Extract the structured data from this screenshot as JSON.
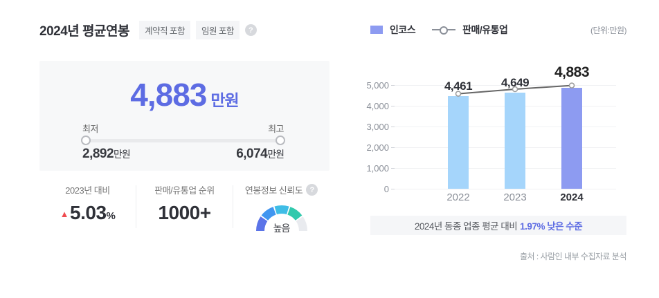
{
  "colors": {
    "accent": "#5d6ce3",
    "bar_blue": "#a5d5fb",
    "bar_highlight": "#8d9bf1",
    "trend_line": "#666666",
    "up_red": "#ef4b50"
  },
  "icons": {
    "help": "?"
  },
  "left_panel": {
    "title": "2024년 평균연봉",
    "badges": [
      "계약직 포함",
      "임원 포함"
    ],
    "summary": {
      "value": "4,883",
      "unit": "만원",
      "range": {
        "min_label": "최저",
        "max_label": "최고",
        "min_value": "2,892",
        "min_unit": "만원",
        "max_value": "6,074",
        "max_unit": "만원"
      }
    },
    "stats": {
      "yoy": {
        "label": "2023년 대비",
        "direction": "up",
        "value": "5.03",
        "unit": "%"
      },
      "rank": {
        "label": "판매/유통업 순위",
        "value": "1000+"
      },
      "reliability": {
        "label": "연봉정보 신뢰도",
        "level": "높음",
        "gauge_colors": [
          "#5b74e8",
          "#4196f0",
          "#3fbde6",
          "#32c9ad",
          "#e9ebef"
        ]
      }
    }
  },
  "right_panel": {
    "legend": {
      "bar_label": "인코스",
      "line_label": "판매/유통업",
      "unit_note": "(단위:만원)"
    },
    "banner": {
      "prefix": "2024년 동종 업종 평균 대비",
      "highlight": "1.97% 낮은 수준"
    },
    "source": "출처 : 사람인 내부 수집자료 분석"
  },
  "chart_data": {
    "type": "bar",
    "categories": [
      "2022",
      "2023",
      "2024"
    ],
    "series": [
      {
        "name": "인코스",
        "type": "bar",
        "values": [
          4461,
          4649,
          4883
        ]
      },
      {
        "name": "판매/유통업",
        "type": "line",
        "values": [
          4580,
          4800,
          4981
        ]
      }
    ],
    "bar_colors": [
      "#a5d5fb",
      "#a5d5fb",
      "#8d9bf1"
    ],
    "emphasis_category": "2024",
    "ylim": [
      0,
      5000
    ],
    "yticks": [
      0,
      1000,
      2000,
      3000,
      4000,
      5000
    ],
    "grid": true,
    "legend_position": "top-left",
    "unit": "만원"
  }
}
